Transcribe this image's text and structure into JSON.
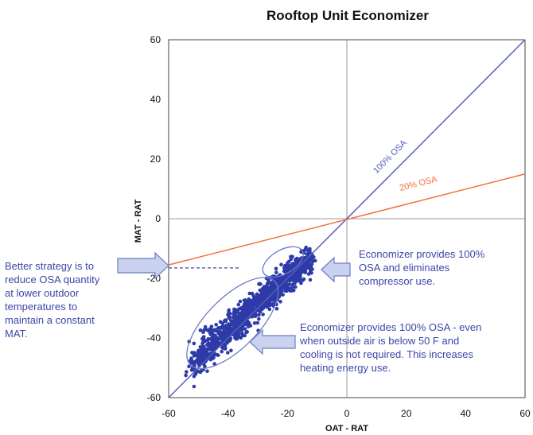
{
  "chart_data": {
    "type": "scatter",
    "title": "Rooftop Unit Economizer",
    "xlabel": "OAT - RAT",
    "ylabel": "MAT - RAT",
    "xlim": [
      -60,
      60
    ],
    "ylim": [
      -60,
      60
    ],
    "xticks": [
      "-60",
      "-40",
      "-20",
      "0",
      "20",
      "40",
      "60"
    ],
    "yticks": [
      "60",
      "40",
      "20",
      "0",
      "-20",
      "-40",
      "-60"
    ],
    "grid": false,
    "reference_lines": [
      {
        "label": "100% OSA",
        "color": "#5560b8",
        "points": [
          [
            -60,
            -60
          ],
          [
            60,
            60
          ]
        ]
      },
      {
        "label": "20% OSA",
        "color": "#f07040",
        "points": [
          [
            -60,
            -15.5
          ],
          [
            60,
            15
          ]
        ]
      }
    ],
    "extension_line": {
      "points": [
        [
          -60,
          -16.5
        ],
        [
          -36,
          -16.5
        ]
      ]
    },
    "series": [
      {
        "color": "#2e3aa8",
        "cluster": {
          "x_range": [
            -52,
            -12
          ],
          "slope": 0.88,
          "intercept": -2.4,
          "spread": 3.2,
          "count": 1200
        }
      }
    ],
    "ellipses": [
      {
        "cx": -21.5,
        "cy": -14.5,
        "rx": 7.5,
        "ry": 4,
        "angle": -30
      },
      {
        "cx": -38.5,
        "cy": -35,
        "rx": 20,
        "ry": 8.5,
        "angle": -45
      }
    ],
    "annotations": [
      {
        "id": "left",
        "lines": [
          "Better strategy is to",
          "reduce OSA quantity",
          "at lower outdoor",
          "temperatures to",
          "maintain a constant",
          "MAT."
        ]
      },
      {
        "id": "upper",
        "lines": [
          "Economizer provides 100%",
          "OSA and eliminates",
          "compressor use."
        ]
      },
      {
        "id": "lower",
        "lines": [
          "Economizer provides 100% OSA - even",
          "when outside air is below 50 F and",
          "cooling is not required. This increases",
          "heating energy use."
        ]
      }
    ]
  },
  "colors": {
    "axis": "#999999",
    "frame": "#444444",
    "annotation_text": "#3b46a8",
    "arrow_fill": "#c9d3f0",
    "arrow_stroke": "#6d7bc4"
  }
}
